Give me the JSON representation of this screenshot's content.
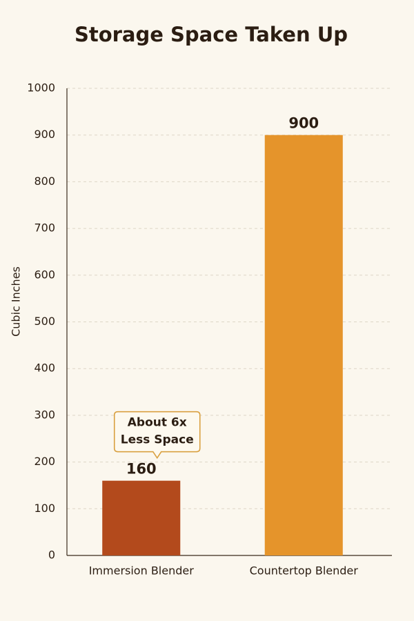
{
  "chart_data": {
    "type": "bar",
    "title": "Storage Space Taken Up",
    "y_label": "Cubic Inches",
    "categories": [
      "Immersion Blender",
      "Countertop Blender"
    ],
    "values": [
      160,
      900
    ],
    "colors": [
      "#b34a1c",
      "#e5942b"
    ],
    "ylim": [
      0,
      1000
    ],
    "yticks": [
      0,
      100,
      200,
      300,
      400,
      500,
      600,
      700,
      800,
      900,
      1000
    ],
    "grid": true,
    "annotation": [
      "About 6x",
      "Less Space"
    ]
  }
}
